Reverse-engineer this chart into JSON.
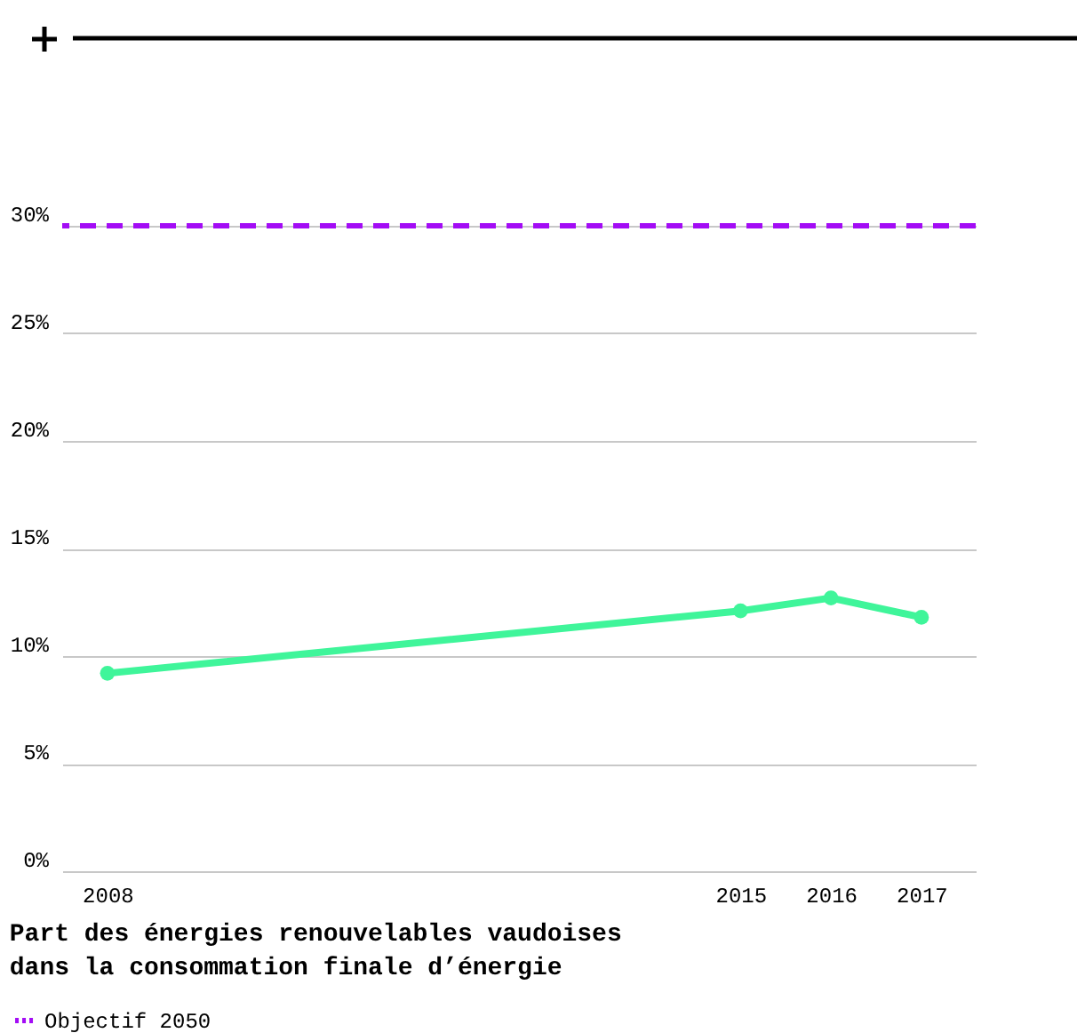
{
  "chart_data": {
    "type": "line",
    "title": "Part des énergies renouvelables vaudoises dans la consommation finale d’énergie",
    "x": [
      2008,
      2015,
      2016,
      2017
    ],
    "series": [
      {
        "color": "#3ff59a",
        "values": [
          9.2,
          12.1,
          12.7,
          11.8
        ]
      }
    ],
    "xlim": [
      2007.5,
      2017.6
    ],
    "xticks": [
      2008,
      2015,
      2016,
      2017
    ],
    "ylim": [
      0,
      30
    ],
    "yticks": [
      {
        "value": 0,
        "label": "0%"
      },
      {
        "value": 5,
        "label": "5%"
      },
      {
        "value": 10,
        "label": "10%"
      },
      {
        "value": 15,
        "label": "15%"
      },
      {
        "value": 20,
        "label": "20%"
      },
      {
        "value": 25,
        "label": "25%"
      },
      {
        "value": 30,
        "label": "30%"
      }
    ],
    "ref_lines": [
      {
        "axis": "y",
        "value": 30,
        "label": "Objectif 2050",
        "color": "#a30cf5",
        "line_style": "dashed"
      }
    ],
    "grid": "y",
    "legend": "bottom",
    "marker": "circle",
    "line_style": "solid"
  }
}
